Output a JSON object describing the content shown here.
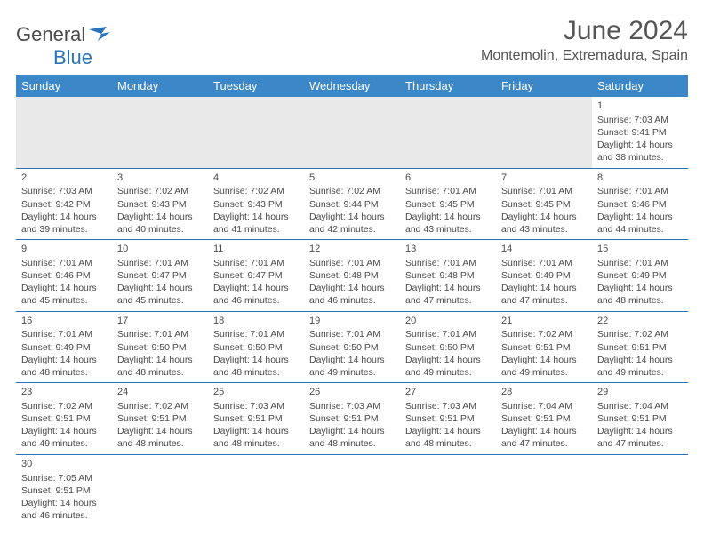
{
  "brand": {
    "name_a": "General",
    "name_b": "Blue"
  },
  "title": "June 2024",
  "location": "Montemolin, Extremadura, Spain",
  "columns": [
    "Sunday",
    "Monday",
    "Tuesday",
    "Wednesday",
    "Thursday",
    "Friday",
    "Saturday"
  ],
  "colors": {
    "header_bg": "#3b87c8",
    "header_text": "#ffffff",
    "cell_border": "#2a73b8",
    "blank_bg": "#e9e9e9",
    "text": "#4a4a4a",
    "logo_blue": "#2a73b8"
  },
  "weeks": [
    [
      null,
      null,
      null,
      null,
      null,
      null,
      {
        "n": "1",
        "sunrise": "7:03 AM",
        "sunset": "9:41 PM",
        "daylight": "14 hours and 38 minutes."
      }
    ],
    [
      {
        "n": "2",
        "sunrise": "7:03 AM",
        "sunset": "9:42 PM",
        "daylight": "14 hours and 39 minutes."
      },
      {
        "n": "3",
        "sunrise": "7:02 AM",
        "sunset": "9:43 PM",
        "daylight": "14 hours and 40 minutes."
      },
      {
        "n": "4",
        "sunrise": "7:02 AM",
        "sunset": "9:43 PM",
        "daylight": "14 hours and 41 minutes."
      },
      {
        "n": "5",
        "sunrise": "7:02 AM",
        "sunset": "9:44 PM",
        "daylight": "14 hours and 42 minutes."
      },
      {
        "n": "6",
        "sunrise": "7:01 AM",
        "sunset": "9:45 PM",
        "daylight": "14 hours and 43 minutes."
      },
      {
        "n": "7",
        "sunrise": "7:01 AM",
        "sunset": "9:45 PM",
        "daylight": "14 hours and 43 minutes."
      },
      {
        "n": "8",
        "sunrise": "7:01 AM",
        "sunset": "9:46 PM",
        "daylight": "14 hours and 44 minutes."
      }
    ],
    [
      {
        "n": "9",
        "sunrise": "7:01 AM",
        "sunset": "9:46 PM",
        "daylight": "14 hours and 45 minutes."
      },
      {
        "n": "10",
        "sunrise": "7:01 AM",
        "sunset": "9:47 PM",
        "daylight": "14 hours and 45 minutes."
      },
      {
        "n": "11",
        "sunrise": "7:01 AM",
        "sunset": "9:47 PM",
        "daylight": "14 hours and 46 minutes."
      },
      {
        "n": "12",
        "sunrise": "7:01 AM",
        "sunset": "9:48 PM",
        "daylight": "14 hours and 46 minutes."
      },
      {
        "n": "13",
        "sunrise": "7:01 AM",
        "sunset": "9:48 PM",
        "daylight": "14 hours and 47 minutes."
      },
      {
        "n": "14",
        "sunrise": "7:01 AM",
        "sunset": "9:49 PM",
        "daylight": "14 hours and 47 minutes."
      },
      {
        "n": "15",
        "sunrise": "7:01 AM",
        "sunset": "9:49 PM",
        "daylight": "14 hours and 48 minutes."
      }
    ],
    [
      {
        "n": "16",
        "sunrise": "7:01 AM",
        "sunset": "9:49 PM",
        "daylight": "14 hours and 48 minutes."
      },
      {
        "n": "17",
        "sunrise": "7:01 AM",
        "sunset": "9:50 PM",
        "daylight": "14 hours and 48 minutes."
      },
      {
        "n": "18",
        "sunrise": "7:01 AM",
        "sunset": "9:50 PM",
        "daylight": "14 hours and 48 minutes."
      },
      {
        "n": "19",
        "sunrise": "7:01 AM",
        "sunset": "9:50 PM",
        "daylight": "14 hours and 49 minutes."
      },
      {
        "n": "20",
        "sunrise": "7:01 AM",
        "sunset": "9:50 PM",
        "daylight": "14 hours and 49 minutes."
      },
      {
        "n": "21",
        "sunrise": "7:02 AM",
        "sunset": "9:51 PM",
        "daylight": "14 hours and 49 minutes."
      },
      {
        "n": "22",
        "sunrise": "7:02 AM",
        "sunset": "9:51 PM",
        "daylight": "14 hours and 49 minutes."
      }
    ],
    [
      {
        "n": "23",
        "sunrise": "7:02 AM",
        "sunset": "9:51 PM",
        "daylight": "14 hours and 49 minutes."
      },
      {
        "n": "24",
        "sunrise": "7:02 AM",
        "sunset": "9:51 PM",
        "daylight": "14 hours and 48 minutes."
      },
      {
        "n": "25",
        "sunrise": "7:03 AM",
        "sunset": "9:51 PM",
        "daylight": "14 hours and 48 minutes."
      },
      {
        "n": "26",
        "sunrise": "7:03 AM",
        "sunset": "9:51 PM",
        "daylight": "14 hours and 48 minutes."
      },
      {
        "n": "27",
        "sunrise": "7:03 AM",
        "sunset": "9:51 PM",
        "daylight": "14 hours and 48 minutes."
      },
      {
        "n": "28",
        "sunrise": "7:04 AM",
        "sunset": "9:51 PM",
        "daylight": "14 hours and 47 minutes."
      },
      {
        "n": "29",
        "sunrise": "7:04 AM",
        "sunset": "9:51 PM",
        "daylight": "14 hours and 47 minutes."
      }
    ],
    [
      {
        "n": "30",
        "sunrise": "7:05 AM",
        "sunset": "9:51 PM",
        "daylight": "14 hours and 46 minutes."
      },
      null,
      null,
      null,
      null,
      null,
      null
    ]
  ],
  "labels": {
    "sunrise": "Sunrise: ",
    "sunset": "Sunset: ",
    "daylight": "Daylight: "
  }
}
